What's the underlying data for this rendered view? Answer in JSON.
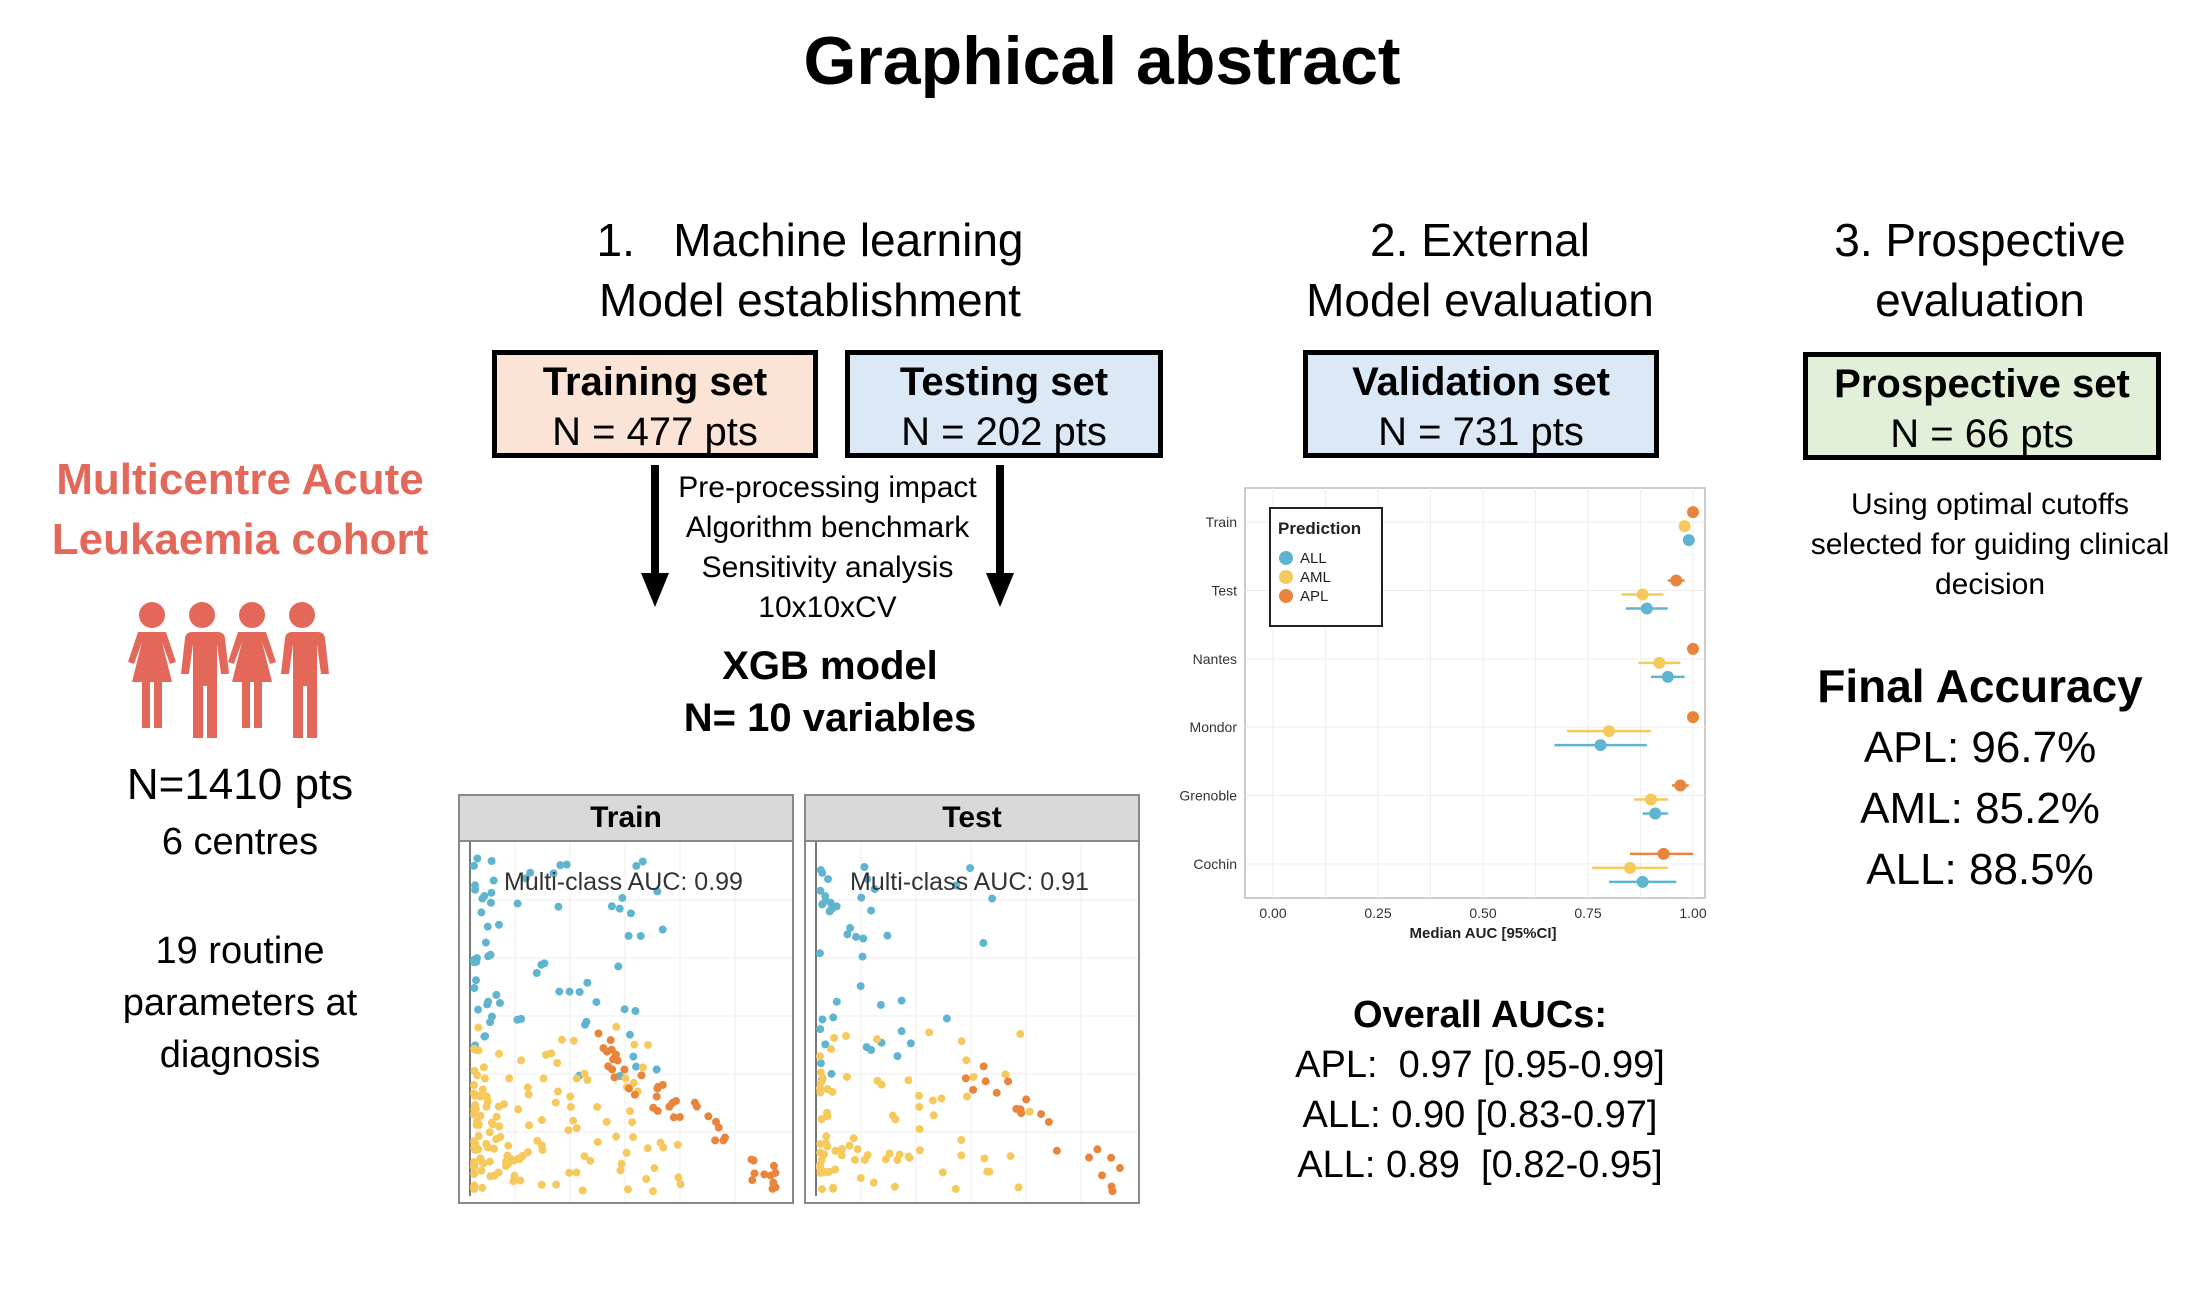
{
  "title": "Graphical abstract",
  "cohort": {
    "line1": "Multicentre Acute",
    "line2": "Leukaemia cohort",
    "n": "N=1410 pts",
    "centres": "6 centres",
    "params1": "19 routine",
    "params2": "parameters at",
    "params3": "diagnosis",
    "icon_color": "#e4685a"
  },
  "section1": {
    "title1": "1.   Machine learning",
    "title2": "Model establishment",
    "training": {
      "label": "Training set",
      "n": "N = 477 pts",
      "color": "#fbe3d6"
    },
    "testing": {
      "label": "Testing set",
      "n": "N = 202 pts",
      "color": "#dbe8f6"
    },
    "steps": [
      "Pre-processing impact",
      "Algorithm benchmark",
      "Sensitivity analysis",
      "10x10xCV"
    ],
    "model1": "XGB model",
    "model2": "N= 10 variables"
  },
  "section2": {
    "title1": "2. External",
    "title2": "Model evaluation",
    "validation": {
      "label": "Validation set",
      "n": "N = 731 pts",
      "color": "#dbe8f6"
    },
    "overall_title": "Overall AUCs:",
    "overall": [
      "APL:  0.97 [0.95-0.99]",
      "ALL: 0.90 [0.83-0.97]",
      "ALL: 0.89  [0.82-0.95]"
    ]
  },
  "section3": {
    "title1": "3. Prospective",
    "title2": "evaluation",
    "prospective": {
      "label": "Prospective set",
      "n": "N = 66 pts",
      "color": "#e2efd9"
    },
    "note": [
      "Using optimal cutoffs",
      "selected for guiding clinical",
      "decision"
    ],
    "final_title": "Final Accuracy",
    "final": [
      "APL: 96.7%",
      "AML: 85.2%",
      "ALL: 88.5%"
    ]
  },
  "chart_data": [
    {
      "type": "scatter",
      "title": "Train",
      "annotation": "Multi-class AUC: 0.99",
      "colors": {
        "ALL": "#5fb5cf",
        "AML": "#f6c95c",
        "APL": "#e8853d"
      }
    },
    {
      "type": "scatter",
      "title": "Test",
      "annotation": "Multi-class AUC: 0.91",
      "colors": {
        "ALL": "#5fb5cf",
        "AML": "#f6c95c",
        "APL": "#e8853d"
      }
    },
    {
      "type": "forest",
      "categories": [
        "Train",
        "Test",
        "Nantes",
        "Mondor",
        "Grenoble",
        "Cochin"
      ],
      "xlabel": "Median AUC [95%CI]",
      "xlim": [
        0,
        1
      ],
      "xticks": [
        "0.00",
        "0.25",
        "0.50",
        "0.75",
        "1.00"
      ],
      "legend_title": "Prediction",
      "legend_position": "top-left",
      "grid": true,
      "series": [
        {
          "name": "ALL",
          "color": "#5fb5cf",
          "values": [
            0.99,
            0.89,
            0.94,
            0.78,
            0.91,
            0.88
          ],
          "ci": [
            [
              0.985,
              0.995
            ],
            [
              0.84,
              0.94
            ],
            [
              0.9,
              0.98
            ],
            [
              0.67,
              0.89
            ],
            [
              0.88,
              0.94
            ],
            [
              0.8,
              0.96
            ]
          ]
        },
        {
          "name": "AML",
          "color": "#f6c95c",
          "values": [
            0.98,
            0.88,
            0.92,
            0.8,
            0.9,
            0.85
          ],
          "ci": [
            [
              0.975,
              0.985
            ],
            [
              0.83,
              0.93
            ],
            [
              0.87,
              0.97
            ],
            [
              0.7,
              0.9
            ],
            [
              0.86,
              0.94
            ],
            [
              0.76,
              0.94
            ]
          ]
        },
        {
          "name": "APL",
          "color": "#e8853d",
          "values": [
            1.0,
            0.96,
            1.0,
            1.0,
            0.97,
            0.93
          ],
          "ci": [
            [
              0.995,
              1.0
            ],
            [
              0.94,
              0.98
            ],
            [
              0.995,
              1.0
            ],
            [
              0.995,
              1.0
            ],
            [
              0.95,
              0.99
            ],
            [
              0.85,
              1.0
            ]
          ]
        }
      ]
    }
  ]
}
